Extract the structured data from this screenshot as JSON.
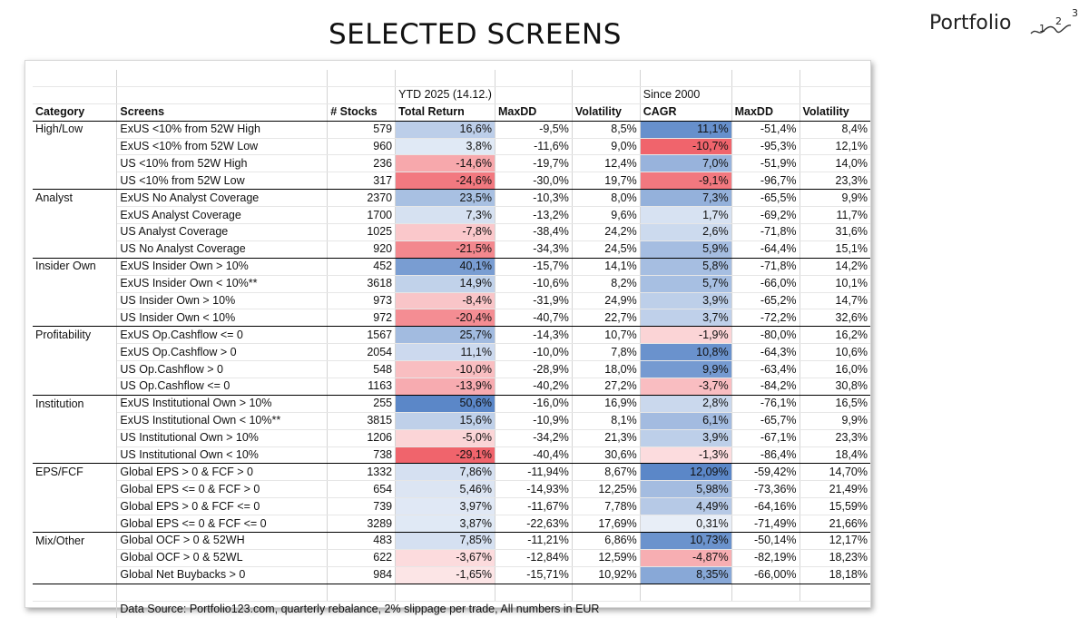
{
  "page": {
    "title": "SELECTED SCREENS"
  },
  "logo": {
    "word": "Portfolio",
    "d1": "1",
    "d2": "2",
    "d3": "3"
  },
  "table": {
    "group1_label": "YTD 2025 (14.12.)",
    "group2_label": "Since 2000",
    "headers": [
      "Category",
      "Screens",
      "# Stocks",
      "Total Return",
      "MaxDD",
      "Volatility",
      "CAGR",
      "MaxDD",
      "Volatility"
    ],
    "groups": [
      {
        "category": "High/Low",
        "rows": [
          {
            "screen": "ExUS <10% from 52W High",
            "stocks": "579",
            "tr": "16,6%",
            "tr_v": 16.6,
            "ytd_maxdd": "-9,5%",
            "ytd_vol": "8,5%",
            "cagr": "11,1%",
            "cagr_v": 11.1,
            "s_maxdd": "-51,4%",
            "s_vol": "8,4%"
          },
          {
            "screen": "ExUS <10% from 52W Low",
            "stocks": "960",
            "tr": "3,8%",
            "tr_v": 3.8,
            "ytd_maxdd": "-11,6%",
            "ytd_vol": "9,0%",
            "cagr": "-10,7%",
            "cagr_v": -10.7,
            "s_maxdd": "-95,3%",
            "s_vol": "12,1%"
          },
          {
            "screen": "US <10% from 52W High",
            "stocks": "236",
            "tr": "-14,6%",
            "tr_v": -14.6,
            "ytd_maxdd": "-19,7%",
            "ytd_vol": "12,4%",
            "cagr": "7,0%",
            "cagr_v": 7.0,
            "s_maxdd": "-51,9%",
            "s_vol": "14,0%"
          },
          {
            "screen": "US <10% from 52W Low",
            "stocks": "317",
            "tr": "-24,6%",
            "tr_v": -24.6,
            "ytd_maxdd": "-30,0%",
            "ytd_vol": "19,7%",
            "cagr": "-9,1%",
            "cagr_v": -9.1,
            "s_maxdd": "-96,7%",
            "s_vol": "23,3%"
          }
        ]
      },
      {
        "category": "Analyst",
        "rows": [
          {
            "screen": "ExUS No Analyst Coverage",
            "stocks": "2370",
            "tr": "23,5%",
            "tr_v": 23.5,
            "ytd_maxdd": "-10,3%",
            "ytd_vol": "8,0%",
            "cagr": "7,3%",
            "cagr_v": 7.3,
            "s_maxdd": "-65,5%",
            "s_vol": "9,9%"
          },
          {
            "screen": "ExUS Analyst Coverage",
            "stocks": "1700",
            "tr": "7,3%",
            "tr_v": 7.3,
            "ytd_maxdd": "-13,2%",
            "ytd_vol": "9,6%",
            "cagr": "1,7%",
            "cagr_v": 1.7,
            "s_maxdd": "-69,2%",
            "s_vol": "11,7%"
          },
          {
            "screen": "US Analyst Coverage",
            "stocks": "1025",
            "tr": "-7,8%",
            "tr_v": -7.8,
            "ytd_maxdd": "-38,4%",
            "ytd_vol": "24,2%",
            "cagr": "2,6%",
            "cagr_v": 2.6,
            "s_maxdd": "-71,8%",
            "s_vol": "31,6%"
          },
          {
            "screen": "US No Analyst Coverage",
            "stocks": "920",
            "tr": "-21,5%",
            "tr_v": -21.5,
            "ytd_maxdd": "-34,3%",
            "ytd_vol": "24,5%",
            "cagr": "5,9%",
            "cagr_v": 5.9,
            "s_maxdd": "-64,4%",
            "s_vol": "15,1%"
          }
        ]
      },
      {
        "category": "Insider Own",
        "rows": [
          {
            "screen": "ExUS Insider Own > 10%",
            "stocks": "452",
            "tr": "40,1%",
            "tr_v": 40.1,
            "ytd_maxdd": "-15,7%",
            "ytd_vol": "14,1%",
            "cagr": "5,8%",
            "cagr_v": 5.8,
            "s_maxdd": "-71,8%",
            "s_vol": "14,2%"
          },
          {
            "screen": "ExUS Insider Own < 10%**",
            "stocks": "3618",
            "tr": "14,9%",
            "tr_v": 14.9,
            "ytd_maxdd": "-10,6%",
            "ytd_vol": "8,2%",
            "cagr": "5,7%",
            "cagr_v": 5.7,
            "s_maxdd": "-66,0%",
            "s_vol": "10,1%"
          },
          {
            "screen": "US Insider Own > 10%",
            "stocks": "973",
            "tr": "-8,4%",
            "tr_v": -8.4,
            "ytd_maxdd": "-31,9%",
            "ytd_vol": "24,9%",
            "cagr": "3,9%",
            "cagr_v": 3.9,
            "s_maxdd": "-65,2%",
            "s_vol": "14,7%"
          },
          {
            "screen": "US Insider Own < 10%",
            "stocks": "972",
            "tr": "-20,4%",
            "tr_v": -20.4,
            "ytd_maxdd": "-40,7%",
            "ytd_vol": "22,7%",
            "cagr": "3,7%",
            "cagr_v": 3.7,
            "s_maxdd": "-72,2%",
            "s_vol": "32,6%"
          }
        ]
      },
      {
        "category": "Profitability",
        "rows": [
          {
            "screen": "ExUS Op.Cashflow <= 0",
            "stocks": "1567",
            "tr": "25,7%",
            "tr_v": 25.7,
            "ytd_maxdd": "-14,3%",
            "ytd_vol": "10,7%",
            "cagr": "-1,9%",
            "cagr_v": -1.9,
            "s_maxdd": "-80,0%",
            "s_vol": "16,2%"
          },
          {
            "screen": "ExUS Op.Cashflow > 0",
            "stocks": "2054",
            "tr": "11,1%",
            "tr_v": 11.1,
            "ytd_maxdd": "-10,0%",
            "ytd_vol": "7,8%",
            "cagr": "10,8%",
            "cagr_v": 10.8,
            "s_maxdd": "-64,3%",
            "s_vol": "10,6%"
          },
          {
            "screen": "US Op.Cashflow > 0",
            "stocks": "548",
            "tr": "-10,0%",
            "tr_v": -10.0,
            "ytd_maxdd": "-28,9%",
            "ytd_vol": "18,0%",
            "cagr": "9,9%",
            "cagr_v": 9.9,
            "s_maxdd": "-63,4%",
            "s_vol": "16,0%"
          },
          {
            "screen": "US Op.Cashflow <= 0",
            "stocks": "1163",
            "tr": "-13,9%",
            "tr_v": -13.9,
            "ytd_maxdd": "-40,2%",
            "ytd_vol": "27,2%",
            "cagr": "-3,7%",
            "cagr_v": -3.7,
            "s_maxdd": "-84,2%",
            "s_vol": "30,8%"
          }
        ]
      },
      {
        "category": "Institution",
        "rows": [
          {
            "screen": "ExUS Institutional Own > 10%",
            "stocks": "255",
            "tr": "50,6%",
            "tr_v": 50.6,
            "ytd_maxdd": "-16,0%",
            "ytd_vol": "16,9%",
            "cagr": "2,8%",
            "cagr_v": 2.8,
            "s_maxdd": "-76,1%",
            "s_vol": "16,5%"
          },
          {
            "screen": "ExUS Institutional Own < 10%**",
            "stocks": "3815",
            "tr": "15,6%",
            "tr_v": 15.6,
            "ytd_maxdd": "-10,9%",
            "ytd_vol": "8,1%",
            "cagr": "6,1%",
            "cagr_v": 6.1,
            "s_maxdd": "-65,7%",
            "s_vol": "9,9%"
          },
          {
            "screen": "US Institutional Own > 10%",
            "stocks": "1206",
            "tr": "-5,0%",
            "tr_v": -5.0,
            "ytd_maxdd": "-34,2%",
            "ytd_vol": "21,3%",
            "cagr": "3,9%",
            "cagr_v": 3.9,
            "s_maxdd": "-67,1%",
            "s_vol": "23,3%"
          },
          {
            "screen": "US Institutional Own < 10%",
            "stocks": "738",
            "tr": "-29,1%",
            "tr_v": -29.1,
            "ytd_maxdd": "-40,4%",
            "ytd_vol": "30,6%",
            "cagr": "-1,3%",
            "cagr_v": -1.3,
            "s_maxdd": "-86,4%",
            "s_vol": "18,4%"
          }
        ]
      },
      {
        "category": "EPS/FCF",
        "rows": [
          {
            "screen": "Global EPS > 0 & FCF > 0",
            "stocks": "1332",
            "tr": "7,86%",
            "tr_v": 7.86,
            "ytd_maxdd": "-11,94%",
            "ytd_vol": "8,67%",
            "cagr": "12,09%",
            "cagr_v": 12.09,
            "s_maxdd": "-59,42%",
            "s_vol": "14,70%"
          },
          {
            "screen": "Global EPS <= 0 & FCF > 0",
            "stocks": "654",
            "tr": "5,46%",
            "tr_v": 5.46,
            "ytd_maxdd": "-14,93%",
            "ytd_vol": "12,25%",
            "cagr": "5,98%",
            "cagr_v": 5.98,
            "s_maxdd": "-73,36%",
            "s_vol": "21,49%"
          },
          {
            "screen": "Global EPS > 0 & FCF <= 0",
            "stocks": "739",
            "tr": "3,97%",
            "tr_v": 3.97,
            "ytd_maxdd": "-11,67%",
            "ytd_vol": "7,78%",
            "cagr": "4,49%",
            "cagr_v": 4.49,
            "s_maxdd": "-64,16%",
            "s_vol": "15,59%"
          },
          {
            "screen": "Global EPS <= 0 & FCF <= 0",
            "stocks": "3289",
            "tr": "3,87%",
            "tr_v": 3.87,
            "ytd_maxdd": "-22,63%",
            "ytd_vol": "17,69%",
            "cagr": "0,31%",
            "cagr_v": 0.31,
            "s_maxdd": "-71,49%",
            "s_vol": "21,66%"
          }
        ]
      },
      {
        "category": "Mix/Other",
        "rows": [
          {
            "screen": "Global OCF > 0 & 52WH",
            "stocks": "483",
            "tr": "7,85%",
            "tr_v": 7.85,
            "ytd_maxdd": "-11,21%",
            "ytd_vol": "6,86%",
            "cagr": "10,73%",
            "cagr_v": 10.73,
            "s_maxdd": "-50,14%",
            "s_vol": "12,17%"
          },
          {
            "screen": "Global OCF > 0 & 52WL",
            "stocks": "622",
            "tr": "-3,67%",
            "tr_v": -3.67,
            "ytd_maxdd": "-12,84%",
            "ytd_vol": "12,59%",
            "cagr": "-4,87%",
            "cagr_v": -4.87,
            "s_maxdd": "-82,19%",
            "s_vol": "18,23%"
          },
          {
            "screen": "Global Net Buybacks > 0",
            "stocks": "984",
            "tr": "-1,65%",
            "tr_v": -1.65,
            "ytd_maxdd": "-15,71%",
            "ytd_vol": "10,92%",
            "cagr": "8,35%",
            "cagr_v": 8.35,
            "s_maxdd": "-66,00%",
            "s_vol": "18,18%"
          }
        ]
      }
    ],
    "source_note": "Data Source: Portfolio123.com, quarterly rebalance, 2% slippage per trade, All numbers in EUR"
  },
  "colors": {
    "positive": "#5b87c8",
    "negative": "#f0646c",
    "neutral": "#ffffff",
    "text": "#111111"
  }
}
